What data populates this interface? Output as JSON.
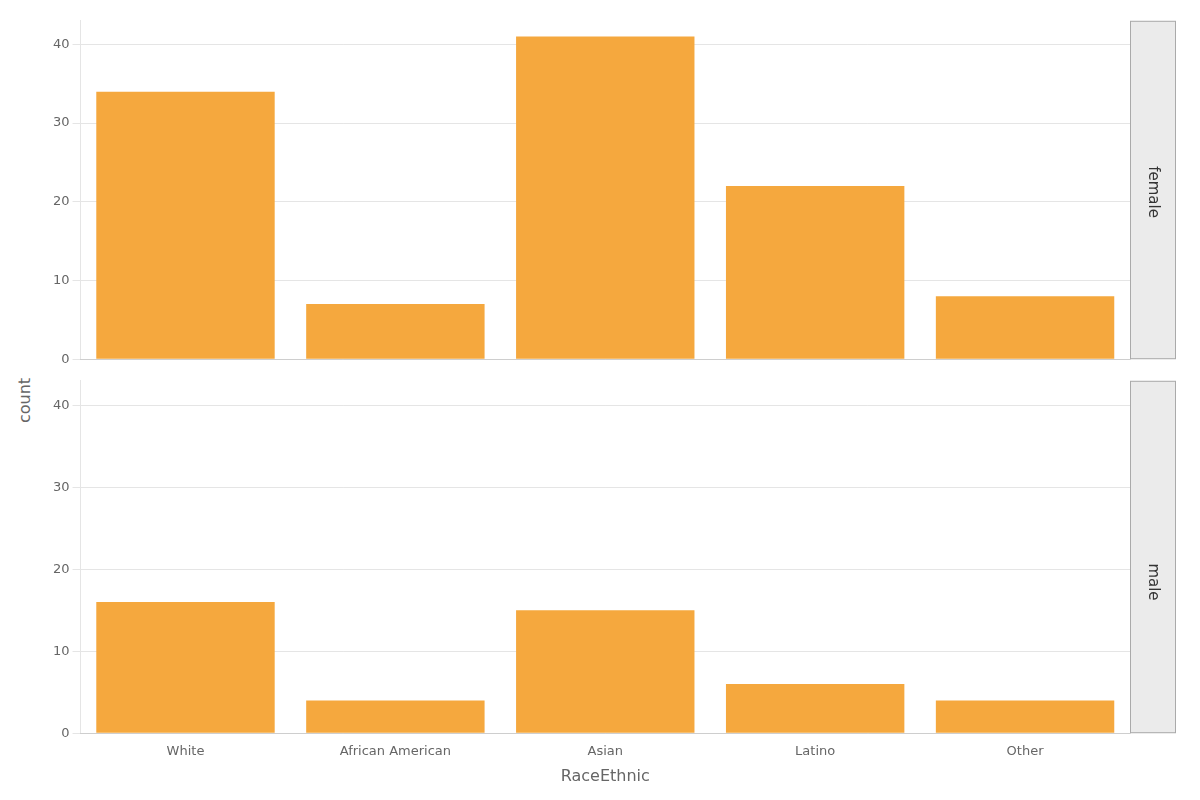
{
  "chart_data": [
    {
      "type": "bar",
      "title": "female",
      "ylabel": "count",
      "categories": [
        "White",
        "African American",
        "Asian",
        "Latino",
        "Other"
      ],
      "values": [
        34,
        7,
        41,
        22,
        8
      ],
      "color": "#F5A83E",
      "ylim": [
        0,
        43
      ],
      "yticks": [
        0,
        10,
        20,
        30,
        40
      ],
      "grid": true,
      "tick_labels": "y"
    },
    {
      "type": "bar",
      "title": "male",
      "xlabel": "RaceEthnic",
      "categories": [
        "White",
        "African American",
        "Asian",
        "Latino",
        "Other"
      ],
      "values": [
        16,
        4,
        15,
        6,
        4
      ],
      "color": "#F5A83E",
      "ylim": [
        0,
        43
      ],
      "yticks": [
        0,
        10,
        20,
        30,
        40
      ],
      "grid": true
    }
  ]
}
